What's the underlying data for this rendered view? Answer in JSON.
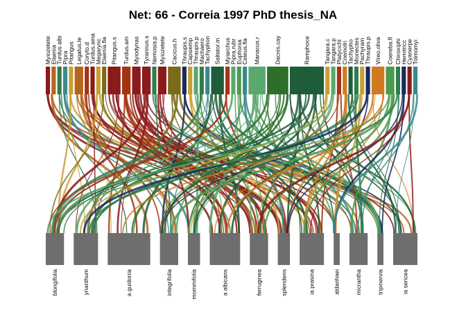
{
  "title": "Net: 66 - Correia 1997 PhD thesis_NA",
  "colors": {
    "lower_box": "#6e6e6e",
    "palette": [
      "#8b1a1a",
      "#b5651d",
      "#2e7d4f",
      "#1f5c3a",
      "#c8a032",
      "#5aa86e",
      "#1a2a5a",
      "#a33412",
      "#7a6a1a",
      "#3a8a8a",
      "#d07a20",
      "#4c9a4c"
    ]
  },
  "higher": [
    {
      "label": "Myiozetete",
      "color": "#8b1a1a",
      "w": 1
    },
    {
      "label": "Elaenia",
      "color": "#b5651d",
      "w": 1
    },
    {
      "label": "Turdus albi",
      "color": "#2e7d4f",
      "w": 1
    },
    {
      "label": "Pipra",
      "color": "#3a8a8a",
      "w": 1
    },
    {
      "label": "Pitangus",
      "color": "#c8a032",
      "w": 1
    },
    {
      "label": "Legatus.le",
      "color": "#b5651d",
      "w": 2
    },
    {
      "label": "Coryto.d",
      "color": "#a33412",
      "w": 1
    },
    {
      "label": "Turdus.ama",
      "color": "#8b1a1a",
      "w": 1
    },
    {
      "label": "Megarync",
      "color": "#c8a032",
      "w": 1
    },
    {
      "label": "Elaenia.fla",
      "color": "#7a6a1a",
      "w": 1
    },
    {
      "label": "Pitangus.s",
      "color": "#8b1a1a",
      "w": 3
    },
    {
      "label": "Turdus.am",
      "color": "#a33412",
      "w": 2
    },
    {
      "label": "Myiodynas",
      "color": "#8b1a1a",
      "w": 2
    },
    {
      "label": "Tyrannus.s",
      "color": "#8b1a1a",
      "w": 2
    },
    {
      "label": "Nemosia.p",
      "color": "#2e7d4f",
      "w": 1
    },
    {
      "label": "Myiozetete",
      "color": "#8b1a1a",
      "w": 2
    },
    {
      "label": "Cacicus.h",
      "color": "#7a6a1a",
      "w": 3
    },
    {
      "label": "Thraupis.s",
      "color": "#1a2a5a",
      "w": 1
    },
    {
      "label": "Capsiemp",
      "color": "#c8a032",
      "w": 1
    },
    {
      "label": "Thraupis.p",
      "color": "#5aa86e",
      "w": 1
    },
    {
      "label": "Machaero",
      "color": "#2e7d4f",
      "w": 1
    },
    {
      "label": "Tachyphon",
      "color": "#3a8a8a",
      "w": 1
    },
    {
      "label": "Saltator.m",
      "color": "#1f5c3a",
      "w": 3
    },
    {
      "label": "Myiarchus",
      "color": "#a33412",
      "w": 1
    },
    {
      "label": "Pipra.rubr",
      "color": "#5aa86e",
      "w": 1
    },
    {
      "label": "Euphonia",
      "color": "#4c9a4c",
      "w": 1
    },
    {
      "label": "Celeus.fla",
      "color": "#3a8a8a",
      "w": 1
    },
    {
      "label": "Manacus.r",
      "color": "#5aa86e",
      "w": 4
    },
    {
      "label": "Dacnis.cay",
      "color": "#2e6e2a",
      "w": 5
    },
    {
      "label": "Ramphoce",
      "color": "#1f5c3a",
      "w": 8
    },
    {
      "label": "Tangara.c",
      "color": "#c8a032",
      "w": 1
    },
    {
      "label": "Tangara.p",
      "color": "#5aa86e",
      "w": 1
    },
    {
      "label": "Platycichl",
      "color": "#a33412",
      "w": 1
    },
    {
      "label": "Cnemotri",
      "color": "#d07a20",
      "w": 1
    },
    {
      "label": "Tachypho",
      "color": "#1f5c3a",
      "w": 1
    },
    {
      "label": "Mionectes",
      "color": "#2e7d4f",
      "w": 1
    },
    {
      "label": "Pachyram",
      "color": "#c8a032",
      "w": 1
    },
    {
      "label": "Thraupis.p",
      "color": "#1a2a5a",
      "w": 1
    },
    {
      "label": "Vireo.oliva",
      "color": "#d07a20",
      "w": 3
    },
    {
      "label": "Coereba.fl",
      "color": "#4c9a4c",
      "w": 2
    },
    {
      "label": "Chiroxiphi",
      "color": "#2e7d4f",
      "w": 1
    },
    {
      "label": "Hemitricc",
      "color": "#1a2a5a",
      "w": 1
    },
    {
      "label": "Cyanerpe",
      "color": "#8b1a1a",
      "w": 1
    },
    {
      "label": "Tolmomyi",
      "color": "#3a8a8a",
      "w": 1
    }
  ],
  "lower": [
    {
      "label": "blongifolia",
      "w": 3
    },
    {
      "label": "yrianthum",
      "w": 4
    },
    {
      "label": "a guidonia",
      "w": 7
    },
    {
      "label": "integrifolia",
      "w": 3
    },
    {
      "label": "mommifolia",
      "w": 2
    },
    {
      "label": "a albicans",
      "w": 5
    },
    {
      "label": "ferruginea",
      "w": 3
    },
    {
      "label": "splendens",
      "w": 2
    },
    {
      "label": "ia prasina",
      "w": 4
    },
    {
      "label": "aldanhaei",
      "w": 1
    },
    {
      "label": "micrantha",
      "w": 3
    },
    {
      "label": "tripinervia",
      "w": 1
    },
    {
      "label": "ia sericea",
      "w": 4
    }
  ]
}
